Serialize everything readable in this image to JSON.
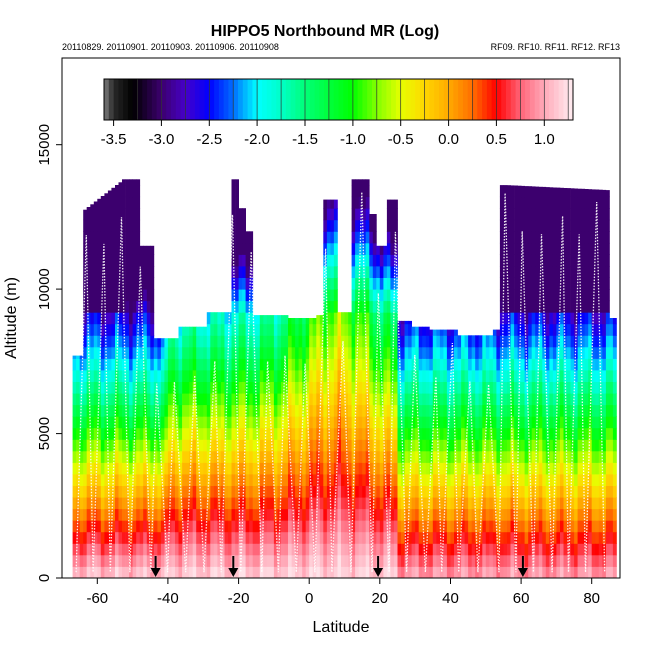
{
  "chart_data": {
    "type": "heatmap",
    "title": "HIPPO5 Northbound MR (Log)",
    "subtitle_left": "20110829. 20110901. 20110903. 20110906. 20110908",
    "subtitle_right": "RF09. RF10. RF11. RF12. RF13",
    "xlabel": "Latitude",
    "ylabel": "Altitude (m)",
    "xlim": [
      -70,
      88
    ],
    "ylim": [
      0,
      18000
    ],
    "x_ticks": [
      -60,
      -40,
      -20,
      0,
      20,
      40,
      60,
      80
    ],
    "y_ticks": [
      0,
      5000,
      10000,
      15000
    ],
    "colorbar": {
      "range": [
        -3.6,
        1.3
      ],
      "tick_values": [
        -3.5,
        -3.0,
        -2.5,
        -2.0,
        -1.5,
        -1.0,
        -0.5,
        0.0,
        0.5,
        1.0
      ],
      "tick_labels": [
        "-3.5",
        "-3.0",
        "-2.5",
        "-2.0",
        "-1.5",
        "-1.0",
        "-0.5",
        "0.0",
        "0.5",
        "1.0"
      ]
    },
    "arrow_latitudes": [
      -43.5,
      -21.5,
      19.5,
      60.5
    ],
    "grid": false,
    "colors": {
      "high": "#ffe8ec",
      "mid": "#00ff40",
      "low": "#0000ff",
      "flight_track": "#ffffff"
    }
  }
}
